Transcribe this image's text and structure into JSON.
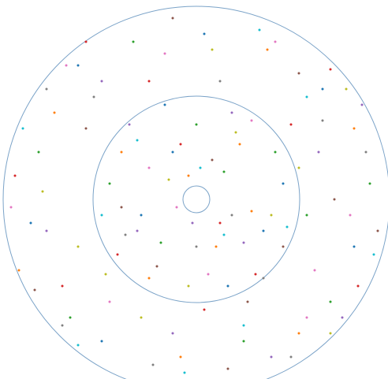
{
  "chart_data": {
    "type": "radial-scatter",
    "xlim": [
      -249,
      243
    ],
    "ylim": [
      -228,
      253
    ],
    "rings": [
      17,
      131,
      245
    ],
    "ring_color": "#7ba3c8",
    "series": [
      {
        "color": "#1f77b4",
        "x": [
          -30,
          85,
          -150,
          200,
          -210,
          40,
          -70,
          160,
          10,
          -120,
          110,
          -40
        ],
        "y": [
          60,
          -40,
          170,
          -60,
          -30,
          -110,
          -20,
          140,
          210,
          -180,
          20,
          120
        ]
      },
      {
        "color": "#ff7f0e",
        "x": [
          -10,
          55,
          -95,
          130,
          -180,
          200,
          -60,
          25,
          -225,
          90,
          -20,
          70
        ],
        "y": [
          30,
          70,
          60,
          -170,
          110,
          90,
          -100,
          -60,
          -90,
          190,
          -200,
          -15
        ]
      },
      {
        "color": "#2ca02c",
        "x": [
          -45,
          100,
          -110,
          170,
          -160,
          0,
          220,
          -200,
          60,
          35,
          -80,
          140
        ],
        "y": [
          -55,
          60,
          20,
          -130,
          -150,
          95,
          20,
          60,
          -180,
          35,
          200,
          -20
        ]
      },
      {
        "color": "#d62728",
        "x": [
          30,
          -100,
          120,
          -170,
          170,
          -60,
          75,
          -230,
          10,
          -140,
          205,
          -20
        ],
        "y": [
          -30,
          -70,
          95,
          -110,
          165,
          150,
          -95,
          30,
          -140,
          200,
          -110,
          70
        ]
      },
      {
        "color": "#9467bd",
        "x": [
          -5,
          60,
          -85,
          155,
          -190,
          95,
          -30,
          210,
          -120,
          45,
          -75,
          185
        ],
        "y": [
          -30,
          -55,
          95,
          60,
          -40,
          -200,
          -170,
          120,
          150,
          110,
          -40,
          -150
        ]
      },
      {
        "color": "#8c564b",
        "x": [
          20,
          -50,
          110,
          -140,
          175,
          -30,
          -205,
          130,
          65,
          -95,
          40,
          230
        ],
        "y": [
          50,
          -85,
          -60,
          90,
          0,
          230,
          -115,
          160,
          -130,
          -10,
          -215,
          -40
        ]
      },
      {
        "color": "#e377c2",
        "x": [
          -25,
          70,
          -60,
          140,
          -165,
          195,
          -110,
          15,
          -235,
          100,
          -40,
          150
        ],
        "y": [
          -10,
          100,
          40,
          -150,
          170,
          -20,
          -130,
          -95,
          -10,
          200,
          185,
          -90
        ]
      },
      {
        "color": "#7f7f7f",
        "x": [
          45,
          -90,
          85,
          -130,
          160,
          -170,
          0,
          -190,
          215,
          30,
          -55,
          120
        ],
        "y": [
          -20,
          -45,
          -100,
          130,
          100,
          -160,
          -60,
          140,
          60,
          150,
          -210,
          -200
        ]
      },
      {
        "color": "#bcbd22",
        "x": [
          -35,
          95,
          -115,
          50,
          -195,
          170,
          -70,
          190,
          -150,
          20,
          130,
          -10
        ],
        "y": [
          25,
          -20,
          -95,
          85,
          10,
          -170,
          -150,
          140,
          -60,
          190,
          40,
          -110
        ]
      },
      {
        "color": "#17becf",
        "x": [
          5,
          -75,
          115,
          -120,
          140,
          -150,
          60,
          -220,
          225,
          -15,
          80,
          35
        ],
        "y": [
          40,
          75,
          -35,
          -20,
          130,
          -185,
          -160,
          90,
          -70,
          -220,
          215,
          -45
        ]
      }
    ]
  }
}
